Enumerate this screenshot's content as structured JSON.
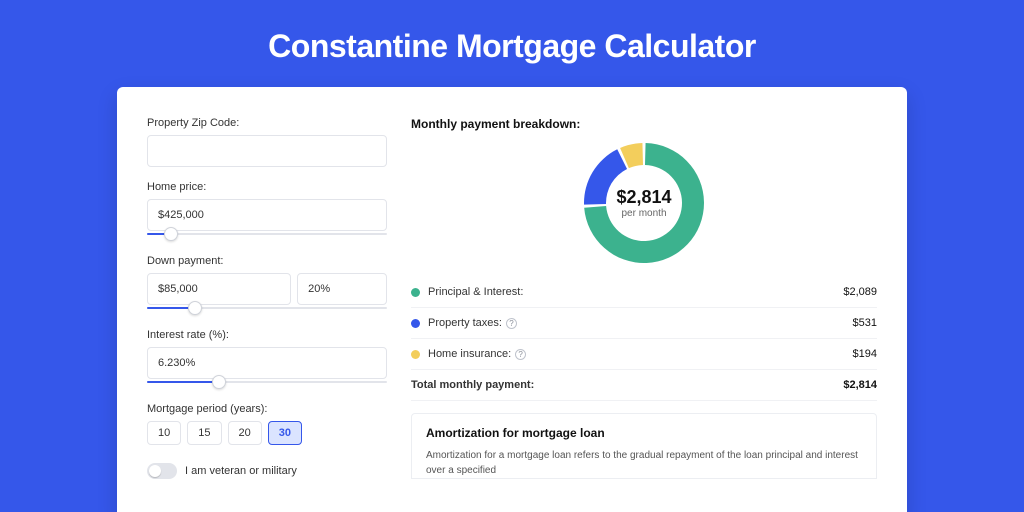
{
  "page": {
    "title": "Constantine Mortgage Calculator",
    "background_color": "#3557ea",
    "card_background": "#ffffff"
  },
  "form": {
    "zip": {
      "label": "Property Zip Code:",
      "value": ""
    },
    "home_price": {
      "label": "Home price:",
      "value": "$425,000",
      "slider_pct": 10
    },
    "down_payment": {
      "label": "Down payment:",
      "amount": "$85,000",
      "percent": "20%",
      "slider_pct": 20
    },
    "interest_rate": {
      "label": "Interest rate (%):",
      "value": "6.230%",
      "slider_pct": 30
    },
    "mortgage_period": {
      "label": "Mortgage period (years):",
      "options": [
        "10",
        "15",
        "20",
        "30"
      ],
      "selected": "30"
    },
    "veteran": {
      "label": "I am veteran or military",
      "enabled": false
    }
  },
  "breakdown": {
    "title": "Monthly payment breakdown:",
    "donut": {
      "type": "donut",
      "center_amount": "$2,814",
      "center_sub": "per month",
      "segments": [
        {
          "name": "Principal & Interest",
          "value": 2089,
          "color": "#3cb28e",
          "start_deg": 0,
          "end_deg": 267
        },
        {
          "name": "Property taxes",
          "value": 531,
          "color": "#3557ea",
          "start_deg": 267,
          "end_deg": 335
        },
        {
          "name": "Home insurance",
          "value": 194,
          "color": "#f3ce5c",
          "start_deg": 335,
          "end_deg": 360
        }
      ],
      "inner_radius": 38,
      "outer_radius": 60,
      "gap_deg": 3,
      "background_color": "#ffffff"
    },
    "legend": [
      {
        "dot_color": "#3cb28e",
        "label": "Principal & Interest:",
        "value": "$2,089",
        "help": false
      },
      {
        "dot_color": "#3557ea",
        "label": "Property taxes:",
        "value": "$531",
        "help": true
      },
      {
        "dot_color": "#f3ce5c",
        "label": "Home insurance:",
        "value": "$194",
        "help": true
      }
    ],
    "total": {
      "label": "Total monthly payment:",
      "value": "$2,814"
    }
  },
  "amortization": {
    "title": "Amortization for mortgage loan",
    "text": "Amortization for a mortgage loan refers to the gradual repayment of the loan principal and interest over a specified"
  }
}
